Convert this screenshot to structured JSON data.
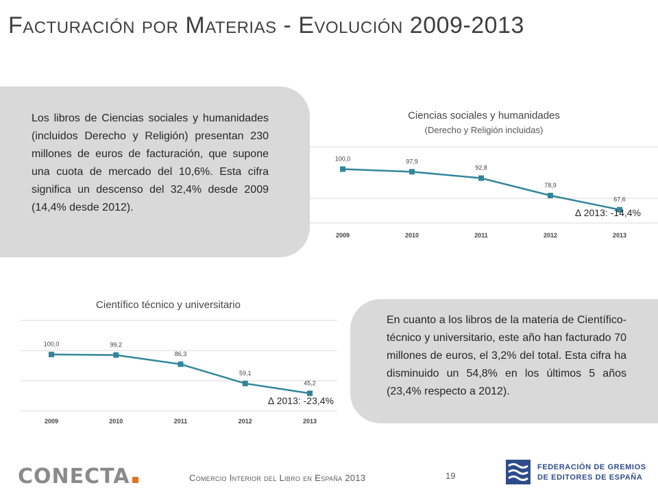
{
  "page": {
    "title_parts": [
      {
        "text": "F",
        "sc": false
      },
      {
        "text": "acturación por ",
        "sc": true
      },
      {
        "text": "M",
        "sc": false
      },
      {
        "text": "aterias - ",
        "sc": true
      },
      {
        "text": "E",
        "sc": false
      },
      {
        "text": "volución 2009-2013",
        "sc": true
      }
    ],
    "paragraph_top": "Los libros de Ciencias sociales y humanidades (incluidos Derecho y Religión) presentan 230 millones de euros de facturación, que supone una cuota de mercado del 10,6%. Esta cifra significa un descenso del 32,4% desde 2009 (14,4% desde 2012).",
    "paragraph_bottom": "En cuanto a los libros de la materia de Científico-técnico y universitario, este año han facturado 70 millones de euros, el 3,2% del total. Esta cifra ha disminuido un 54,8% en los últimos 5 años (23,4% respecto a 2012).",
    "footer": {
      "logo_text": "CONECTA",
      "subtitle": "Comercio Interior del Libro en España 2013",
      "page_number": "19",
      "federation_line1": "FEDERACIÓN DE GREMIOS",
      "federation_line2": "DE EDITORES DE ESPAÑA"
    },
    "colors": {
      "line": "#31869b",
      "panel": "#d9d9d9",
      "grid": "#d9d9d9",
      "title": "#3f3f3f"
    }
  },
  "chart_data": [
    {
      "type": "line",
      "title": "Ciencias sociales y humanidades",
      "subtitle": "(Derecho y Religión incluidas)",
      "categories": [
        "2009",
        "2010",
        "2011",
        "2012",
        "2013"
      ],
      "values": [
        100.0,
        97.9,
        92.8,
        78.9,
        67.6
      ],
      "value_labels": [
        "100,0",
        "97,9",
        "92,8",
        "78,9",
        "67,6"
      ],
      "annotation": "∆ 2013: -14,4%",
      "ylim": [
        40,
        120
      ],
      "grid": true
    },
    {
      "type": "line",
      "title": "Científico técnico y universitario",
      "subtitle": "",
      "categories": [
        "2009",
        "2010",
        "2011",
        "2012",
        "2013"
      ],
      "values": [
        100.0,
        99.2,
        86.3,
        59.1,
        45.2
      ],
      "value_labels": [
        "100,0",
        "99,2",
        "86,3",
        "59,1",
        "45,2"
      ],
      "annotation": "∆ 2013: -23,4%",
      "ylim": [
        0,
        150
      ],
      "grid": true
    }
  ]
}
